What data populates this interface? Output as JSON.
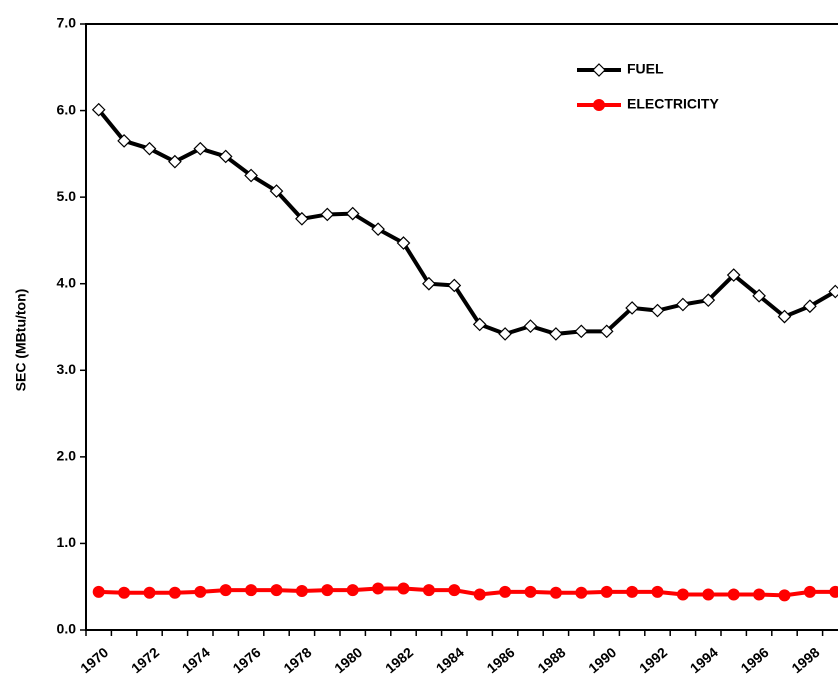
{
  "chart_data": {
    "type": "line",
    "y_label": "SEC (MBtu/ton)",
    "categories": [
      "1970",
      null,
      "1972",
      null,
      "1974",
      null,
      "1976",
      null,
      "1978",
      null,
      "1980",
      null,
      "1982",
      null,
      "1984",
      null,
      "1986",
      null,
      "1988",
      null,
      "1990",
      null,
      "1992",
      null,
      "1994",
      null,
      "1996",
      null,
      "1998",
      null
    ],
    "series": [
      {
        "name": "FUEL",
        "color": "#000000",
        "marker": "diamond",
        "values": [
          6.01,
          5.65,
          5.56,
          5.41,
          5.56,
          5.47,
          5.25,
          5.07,
          4.75,
          4.8,
          4.81,
          4.63,
          4.47,
          4.0,
          3.98,
          3.53,
          3.42,
          3.51,
          3.42,
          3.45,
          3.45,
          3.72,
          3.69,
          3.76,
          3.81,
          4.1,
          3.86,
          3.62,
          3.74,
          3.91
        ]
      },
      {
        "name": "ELECTRICITY",
        "color": "#ff0000",
        "marker": "circle",
        "values": [
          0.44,
          0.43,
          0.43,
          0.43,
          0.44,
          0.46,
          0.46,
          0.46,
          0.45,
          0.46,
          0.46,
          0.48,
          0.48,
          0.46,
          0.46,
          0.41,
          0.44,
          0.44,
          0.43,
          0.43,
          0.44,
          0.44,
          0.44,
          0.41,
          0.41,
          0.41,
          0.41,
          0.4,
          0.44,
          0.44
        ]
      }
    ],
    "ylim": [
      0,
      7
    ],
    "yticks": [
      {
        "value": 0,
        "label": "0.0"
      },
      {
        "value": 1,
        "label": "1.0"
      },
      {
        "value": 2,
        "label": "2.0"
      },
      {
        "value": 3,
        "label": "3.0"
      },
      {
        "value": 4,
        "label": "4.0"
      },
      {
        "value": 5,
        "label": "5.0"
      },
      {
        "value": 6,
        "label": "6.0"
      },
      {
        "value": 7,
        "label": "7.0"
      }
    ],
    "grid": false,
    "legend": "top-right"
  }
}
